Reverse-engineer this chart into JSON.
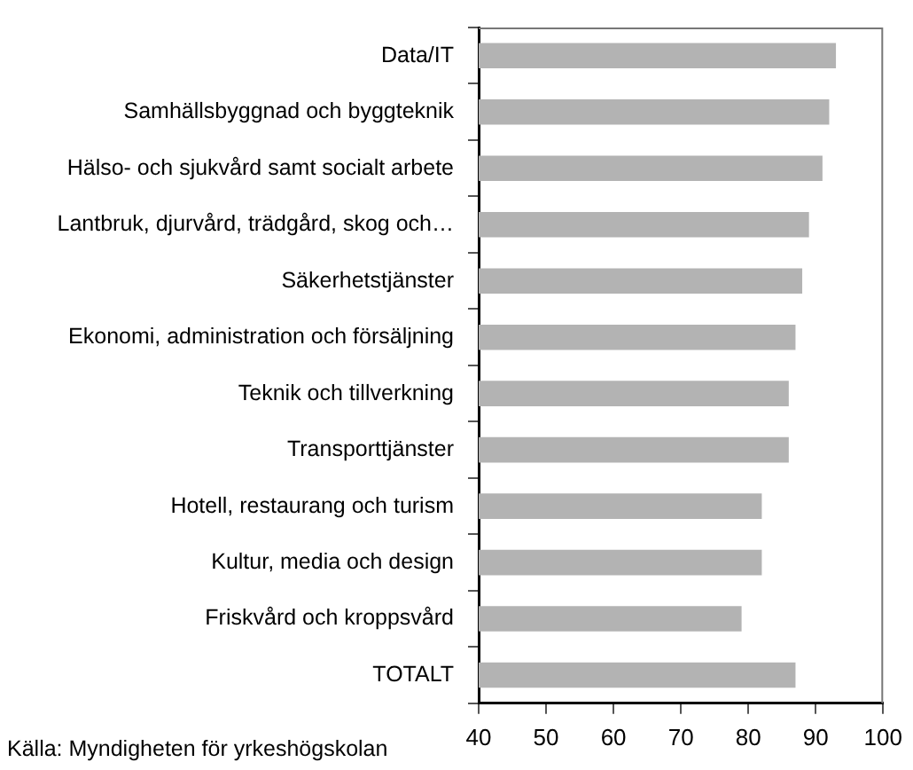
{
  "chart_data": {
    "type": "bar",
    "orientation": "horizontal",
    "categories": [
      "Data/IT",
      "Samhällsbyggnad och byggteknik",
      "Hälso- och sjukvård samt socialt arbete",
      "Lantbruk, djurvård, trädgård, skog och…",
      "Säkerhetstjänster",
      "Ekonomi, administration och försäljning",
      "Teknik och tillverkning",
      "Transporttjänster",
      "Hotell, restaurang och turism",
      "Kultur, media och design",
      "Friskvård och kroppsvård",
      "TOTALT"
    ],
    "values": [
      93,
      92,
      91,
      89,
      88,
      87,
      86,
      86,
      82,
      82,
      79,
      87
    ],
    "color": "#b3b3b3",
    "xlim": [
      40,
      100
    ],
    "xticks": [
      40,
      50,
      60,
      70,
      80,
      90,
      100
    ],
    "grid": false,
    "legend": false,
    "annotations": [
      "Källa: Myndigheten för yrkeshögskolan"
    ]
  }
}
